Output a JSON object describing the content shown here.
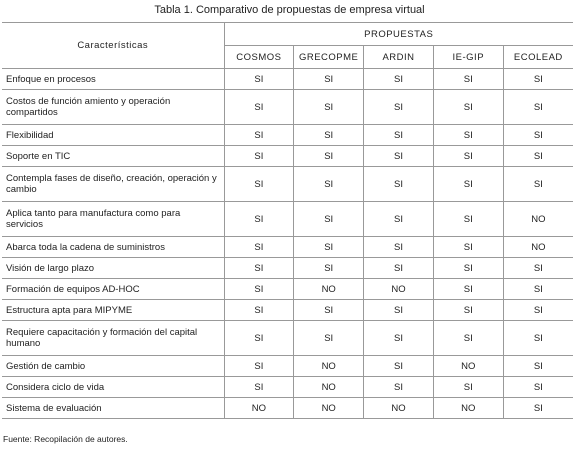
{
  "title": "Tabla 1. Comparativo de propuestas de empresa virtual",
  "table": {
    "header": {
      "characteristics": "Características",
      "group": "PROPUESTAS",
      "columns": [
        "COSMOS",
        "GRECOPME",
        "ARDIN",
        "IE-GIP",
        "ECOLEAD"
      ]
    },
    "rows": [
      {
        "label": "Enfoque en procesos",
        "values": [
          "SI",
          "SI",
          "SI",
          "SI",
          "SI"
        ]
      },
      {
        "label": "Costos de función amiento y operación compartidos",
        "values": [
          "SI",
          "SI",
          "SI",
          "SI",
          "SI"
        ]
      },
      {
        "label": "Flexibilidad",
        "values": [
          "SI",
          "SI",
          "SI",
          "SI",
          "SI"
        ]
      },
      {
        "label": "Soporte en TIC",
        "values": [
          "SI",
          "SI",
          "SI",
          "SI",
          "SI"
        ]
      },
      {
        "label": "Contempla fases de diseño, creación, operación y cambio",
        "values": [
          "SI",
          "SI",
          "SI",
          "SI",
          "SI"
        ]
      },
      {
        "label": "Aplica tanto para manufactura como para servicios",
        "values": [
          "SI",
          "SI",
          "SI",
          "SI",
          "NO"
        ]
      },
      {
        "label": "Abarca toda la cadena de suministros",
        "values": [
          "SI",
          "SI",
          "SI",
          "SI",
          "NO"
        ]
      },
      {
        "label": "Visión de largo plazo",
        "values": [
          "SI",
          "SI",
          "SI",
          "SI",
          "SI"
        ]
      },
      {
        "label": "Formación de equipos AD-HOC",
        "values": [
          "SI",
          "NO",
          "NO",
          "SI",
          "SI"
        ]
      },
      {
        "label": "Estructura apta para MIPYME",
        "values": [
          "SI",
          "SI",
          "SI",
          "SI",
          "SI"
        ]
      },
      {
        "label": "Requiere capacitación y formación del capital humano",
        "values": [
          "SI",
          "SI",
          "SI",
          "SI",
          "SI"
        ]
      },
      {
        "label": "Gestión de cambio",
        "values": [
          "SI",
          "NO",
          "SI",
          "NO",
          "SI"
        ]
      },
      {
        "label": "Considera ciclo de vida",
        "values": [
          "SI",
          "NO",
          "SI",
          "SI",
          "SI"
        ]
      },
      {
        "label": "Sistema de evaluación",
        "values": [
          "NO",
          "NO",
          "NO",
          "NO",
          "SI"
        ]
      }
    ]
  },
  "footnote": "Fuente: Recopilación de autores."
}
